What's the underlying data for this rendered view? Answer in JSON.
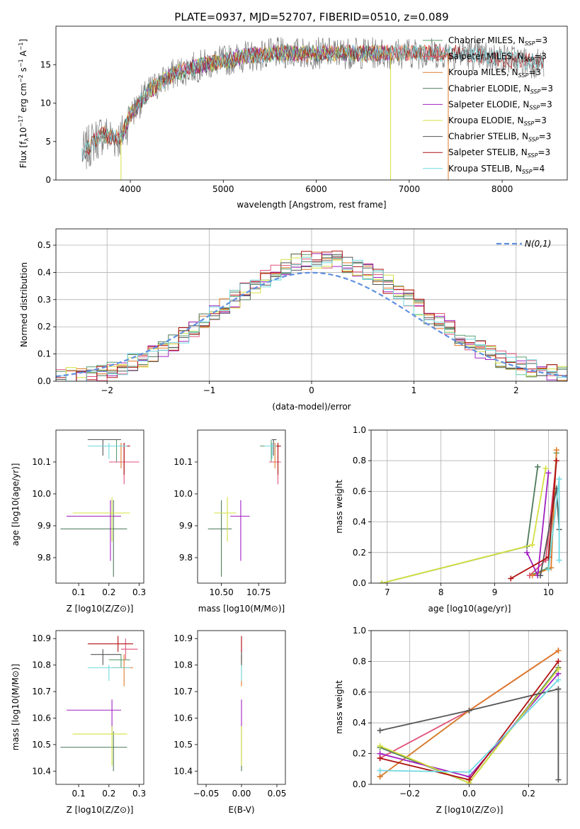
{
  "colors": {
    "Chabrier MILES": "#5a9e6f",
    "Salpeter MILES": "#e0527a",
    "Kroupa MILES": "#e07b2a",
    "Chabrier ELODIE": "#4d7a5a",
    "Salpeter ELODIE": "#a020c0",
    "Kroupa ELODIE": "#d4e040",
    "Chabrier STELIB": "#555555",
    "Salpeter STELIB": "#b01010",
    "Kroupa STELIB": "#70d8e0",
    "normal": "#6090e0"
  },
  "chart_data": [
    {
      "id": "spectrum",
      "type": "line",
      "title": "PLATE=0937, MJD=52707, FIBERID=0510, z=0.089",
      "xlabel": "wavelength [Angstrom, rest frame]",
      "ylabel": "Flux [f_λ 10^-17 erg cm^-2 s^-1 A^-1]",
      "xlim": [
        3200,
        8700
      ],
      "ylim": [
        0,
        20
      ],
      "xticks": [
        4000,
        5000,
        6000,
        7000,
        8000
      ],
      "yticks": [
        0,
        5,
        10,
        15
      ],
      "legend_position": "top-right",
      "legend": [
        {
          "base": "Chabrier MILES, N",
          "sub": "SSP",
          "tail": "=3"
        },
        {
          "base": "Salpeter MILES, N",
          "sub": "SSP",
          "tail": "=3"
        },
        {
          "base": "Kroupa MILES, N",
          "sub": "SSP",
          "tail": "=3"
        },
        {
          "base": "Chabrier ELODIE, N",
          "sub": "SSP",
          "tail": "=3"
        },
        {
          "base": "Salpeter ELODIE, N",
          "sub": "SSP",
          "tail": "=3"
        },
        {
          "base": "Kroupa ELODIE, N",
          "sub": "SSP",
          "tail": "=3"
        },
        {
          "base": "Chabrier STELIB, N",
          "sub": "SSP",
          "tail": "=3"
        },
        {
          "base": "Salpeter STELIB, N",
          "sub": "SSP",
          "tail": "=3"
        },
        {
          "base": "Kroupa STELIB, N",
          "sub": "SSP",
          "tail": "=4"
        }
      ],
      "continuum": {
        "x": [
          3500,
          3600,
          3700,
          3800,
          3900,
          4000,
          4100,
          4200,
          4300,
          4500,
          4800,
          5200,
          5600,
          6000,
          6500,
          7000,
          7500,
          8000,
          8400
        ],
        "y": [
          3.5,
          5.0,
          6.0,
          5.5,
          5.5,
          8.5,
          10.0,
          11.5,
          12.5,
          14.0,
          15.0,
          16.0,
          16.5,
          16.5,
          16.5,
          16.5,
          16.5,
          15.8,
          15.2
        ]
      },
      "range_by_series": {
        "MILES": [
          3540,
          7400
        ],
        "ELODIE": [
          3900,
          6800
        ],
        "STELIB": [
          3200,
          9300
        ]
      }
    },
    {
      "id": "residuals",
      "type": "histogram",
      "xlabel": "(data-model)/error",
      "ylabel": "Normed distribution",
      "xlim": [
        -2.5,
        2.5
      ],
      "ylim": [
        0,
        0.56
      ],
      "xticks": [
        -2,
        -1,
        0,
        1,
        2
      ],
      "yticks": [
        0.0,
        0.1,
        0.2,
        0.3,
        0.4,
        0.5
      ],
      "grid": true,
      "bin_width": 0.1,
      "legend_position": "top-right",
      "legend_label": "N(0,1)"
    },
    {
      "id": "age-vs-Z",
      "type": "errorbar",
      "xlabel": "Z [log10(Z/Z⊙)]",
      "ylabel": "age  [log10(age/yr)]",
      "xlim": [
        0.025,
        0.315
      ],
      "ylim": [
        9.72,
        10.2
      ],
      "xticks": [
        0.1,
        0.2,
        0.3
      ],
      "yticks": [
        9.8,
        9.9,
        10.0,
        10.1
      ],
      "points": [
        {
          "series": "Chabrier MILES",
          "x": 0.225,
          "y": 10.15,
          "xerr": [
            0.13,
            0.25
          ],
          "yerr": [
            10.1,
            10.17
          ]
        },
        {
          "series": "Salpeter MILES",
          "x": 0.25,
          "y": 10.1,
          "xerr": [
            0.2,
            0.3
          ],
          "yerr": [
            10.03,
            10.16
          ]
        },
        {
          "series": "Kroupa MILES",
          "x": 0.24,
          "y": 10.15,
          "xerr": [
            0.2,
            0.265
          ],
          "yerr": [
            10.08,
            10.16
          ]
        },
        {
          "series": "Chabrier ELODIE",
          "x": 0.215,
          "y": 9.89,
          "xerr": [
            0.04,
            0.26
          ],
          "yerr": [
            9.74,
            9.98
          ]
        },
        {
          "series": "Salpeter ELODIE",
          "x": 0.205,
          "y": 9.93,
          "xerr": [
            0.06,
            0.24
          ],
          "yerr": [
            9.79,
            9.98
          ]
        },
        {
          "series": "Kroupa ELODIE",
          "x": 0.21,
          "y": 9.94,
          "xerr": [
            0.08,
            0.27
          ],
          "yerr": [
            9.85,
            9.99
          ]
        },
        {
          "series": "Chabrier STELIB",
          "x": 0.18,
          "y": 10.17,
          "xerr": [
            0.13,
            0.24
          ],
          "yerr": [
            10.12,
            10.17
          ]
        },
        {
          "series": "Salpeter STELIB",
          "x": 0.25,
          "y": 10.15,
          "xerr": [
            0.2,
            0.27
          ],
          "yerr": [
            10.06,
            10.16
          ]
        },
        {
          "series": "Kroupa STELIB",
          "x": 0.2,
          "y": 10.15,
          "xerr": [
            0.13,
            0.26
          ],
          "yerr": [
            10.11,
            10.16
          ]
        }
      ]
    },
    {
      "id": "age-vs-mass",
      "type": "errorbar",
      "xlabel": "mass [log10(M/M⊙)]",
      "ylabel": "",
      "xlim": [
        10.34,
        10.93
      ],
      "ylim": [
        9.72,
        10.2
      ],
      "xticks": [
        10.5,
        10.75
      ],
      "yticks": [
        9.8,
        9.9,
        10.0,
        10.1
      ],
      "points": [
        {
          "series": "Chabrier MILES",
          "x": 10.835,
          "y": 10.15,
          "xerr": [
            10.76,
            10.88
          ],
          "yerr": [
            10.1,
            10.17
          ]
        },
        {
          "series": "Salpeter MILES",
          "x": 10.88,
          "y": 10.1,
          "xerr": [
            10.82,
            10.9
          ],
          "yerr": [
            10.03,
            10.16
          ]
        },
        {
          "series": "Kroupa MILES",
          "x": 10.86,
          "y": 10.15,
          "xerr": [
            10.8,
            10.88
          ],
          "yerr": [
            10.08,
            10.16
          ]
        },
        {
          "series": "Chabrier ELODIE",
          "x": 10.5,
          "y": 9.89,
          "xerr": [
            10.41,
            10.57
          ],
          "yerr": [
            9.74,
            9.98
          ]
        },
        {
          "series": "Salpeter ELODIE",
          "x": 10.63,
          "y": 9.93,
          "xerr": [
            10.56,
            10.69
          ],
          "yerr": [
            9.79,
            9.98
          ]
        },
        {
          "series": "Kroupa ELODIE",
          "x": 10.54,
          "y": 9.94,
          "xerr": [
            10.45,
            10.6
          ],
          "yerr": [
            9.85,
            9.99
          ]
        },
        {
          "series": "Chabrier STELIB",
          "x": 10.85,
          "y": 10.17,
          "xerr": [
            10.84,
            10.87
          ],
          "yerr": [
            10.12,
            10.17
          ]
        },
        {
          "series": "Salpeter STELIB",
          "x": 10.88,
          "y": 10.15,
          "xerr": [
            10.86,
            10.9
          ],
          "yerr": [
            10.06,
            10.16
          ]
        },
        {
          "series": "Kroupa STELIB",
          "x": 10.84,
          "y": 10.15,
          "xerr": [
            10.79,
            10.87
          ],
          "yerr": [
            10.11,
            10.16
          ]
        }
      ]
    },
    {
      "id": "weight-vs-age",
      "type": "line",
      "xlabel": "age  [log10(age/yr)]",
      "ylabel": "mass weight",
      "xlim": [
        6.7,
        10.35
      ],
      "ylim": [
        0,
        1
      ],
      "xticks": [
        7,
        8,
        9,
        10
      ],
      "yticks": [
        0.0,
        0.2,
        0.4,
        0.6,
        0.8,
        1.0
      ],
      "grid": true,
      "series": [
        {
          "name": "Chabrier MILES",
          "x": [
            9.65,
            10.0,
            10.15
          ],
          "y": [
            0.05,
            0.1,
            0.85
          ]
        },
        {
          "name": "Salpeter MILES",
          "x": [
            9.65,
            9.95,
            10.15
          ],
          "y": [
            0.05,
            0.15,
            0.8
          ]
        },
        {
          "name": "Kroupa MILES",
          "x": [
            9.7,
            10.05,
            10.15
          ],
          "y": [
            0.05,
            0.1,
            0.87
          ]
        },
        {
          "name": "Chabrier ELODIE",
          "x": [
            6.9,
            9.6,
            9.8
          ],
          "y": [
            0.0,
            0.24,
            0.76
          ]
        },
        {
          "name": "Salpeter ELODIE",
          "x": [
            9.6,
            9.8,
            10.0
          ],
          "y": [
            0.2,
            0.05,
            0.72
          ]
        },
        {
          "name": "Kroupa ELODIE",
          "x": [
            6.9,
            9.7,
            9.95
          ],
          "y": [
            0.0,
            0.25,
            0.75
          ]
        },
        {
          "name": "Chabrier STELIB",
          "x": [
            9.85,
            10.15,
            10.2
          ],
          "y": [
            0.05,
            0.62,
            0.35
          ]
        },
        {
          "name": "Salpeter STELIB",
          "x": [
            9.3,
            10.0,
            10.15
          ],
          "y": [
            0.03,
            0.17,
            0.8
          ]
        },
        {
          "name": "Kroupa STELIB",
          "x": [
            10.0,
            10.2,
            10.2
          ],
          "y": [
            0.09,
            0.68,
            0.15
          ]
        }
      ]
    },
    {
      "id": "mass-vs-Z",
      "type": "errorbar",
      "xlabel": "Z [log10(Z/Z⊙)]",
      "ylabel": "mass [log10(M/M⊙)]",
      "xlim": [
        0.025,
        0.315
      ],
      "ylim": [
        10.35,
        10.93
      ],
      "xticks": [
        0.1,
        0.2,
        0.3
      ],
      "yticks": [
        10.4,
        10.5,
        10.6,
        10.7,
        10.8,
        10.9
      ],
      "points": [
        {
          "series": "Chabrier MILES",
          "x": 0.24,
          "y": 10.82,
          "xerr": [
            0.2,
            0.27
          ],
          "yerr": [
            10.79,
            10.84
          ]
        },
        {
          "series": "Salpeter MILES",
          "x": 0.255,
          "y": 10.86,
          "xerr": [
            0.24,
            0.295
          ],
          "yerr": [
            10.82,
            10.9
          ]
        },
        {
          "series": "Kroupa MILES",
          "x": 0.25,
          "y": 10.79,
          "xerr": [
            0.21,
            0.28
          ],
          "yerr": [
            10.72,
            10.84
          ]
        },
        {
          "series": "Chabrier ELODIE",
          "x": 0.215,
          "y": 10.49,
          "xerr": [
            0.04,
            0.26
          ],
          "yerr": [
            10.4,
            10.55
          ]
        },
        {
          "series": "Salpeter ELODIE",
          "x": 0.21,
          "y": 10.63,
          "xerr": [
            0.06,
            0.24
          ],
          "yerr": [
            10.55,
            10.67
          ]
        },
        {
          "series": "Kroupa ELODIE",
          "x": 0.21,
          "y": 10.54,
          "xerr": [
            0.08,
            0.26
          ],
          "yerr": [
            10.42,
            10.57
          ]
        },
        {
          "series": "Chabrier STELIB",
          "x": 0.18,
          "y": 10.84,
          "xerr": [
            0.14,
            0.24
          ],
          "yerr": [
            10.8,
            10.86
          ]
        },
        {
          "series": "Salpeter STELIB",
          "x": 0.23,
          "y": 10.88,
          "xerr": [
            0.13,
            0.28
          ],
          "yerr": [
            10.85,
            10.91
          ]
        },
        {
          "series": "Kroupa STELIB",
          "x": 0.2,
          "y": 10.79,
          "xerr": [
            0.13,
            0.27
          ],
          "yerr": [
            10.74,
            10.8
          ]
        }
      ]
    },
    {
      "id": "mass-vs-EBV",
      "type": "errorbar",
      "xlabel": "E(B-V)",
      "ylabel": "",
      "xlim": [
        -0.062,
        0.062
      ],
      "ylim": [
        10.35,
        10.93
      ],
      "xticks": [
        -0.05,
        0.0,
        0.05
      ],
      "yticks": [
        10.4,
        10.5,
        10.6,
        10.7,
        10.8,
        10.9
      ],
      "points": [
        {
          "series": "Chabrier MILES",
          "x": 0,
          "y": 10.82,
          "xerr": [
            0,
            0
          ],
          "yerr": [
            10.79,
            10.84
          ]
        },
        {
          "series": "Salpeter MILES",
          "x": 0,
          "y": 10.86,
          "xerr": [
            0,
            0
          ],
          "yerr": [
            10.82,
            10.9
          ]
        },
        {
          "series": "Kroupa MILES",
          "x": 0,
          "y": 10.79,
          "xerr": [
            0,
            0
          ],
          "yerr": [
            10.72,
            10.84
          ]
        },
        {
          "series": "Chabrier ELODIE",
          "x": 0,
          "y": 10.49,
          "xerr": [
            0,
            0
          ],
          "yerr": [
            10.4,
            10.55
          ]
        },
        {
          "series": "Salpeter ELODIE",
          "x": 0,
          "y": 10.63,
          "xerr": [
            0,
            0
          ],
          "yerr": [
            10.55,
            10.67
          ]
        },
        {
          "series": "Kroupa ELODIE",
          "x": 0,
          "y": 10.54,
          "xerr": [
            0,
            0
          ],
          "yerr": [
            10.42,
            10.57
          ]
        },
        {
          "series": "Chabrier STELIB",
          "x": 0,
          "y": 10.84,
          "xerr": [
            0,
            0
          ],
          "yerr": [
            10.8,
            10.86
          ]
        },
        {
          "series": "Salpeter STELIB",
          "x": 0,
          "y": 10.88,
          "xerr": [
            0,
            0
          ],
          "yerr": [
            10.85,
            10.91
          ]
        },
        {
          "series": "Kroupa STELIB",
          "x": 0,
          "y": 10.79,
          "xerr": [
            0,
            0
          ],
          "yerr": [
            10.74,
            10.8
          ]
        }
      ]
    },
    {
      "id": "weight-vs-Z",
      "type": "line",
      "xlabel": "Z [log10(Z/Z⊙)]",
      "ylabel": "mass weight",
      "xlim": [
        -0.33,
        0.33
      ],
      "ylim": [
        0,
        1
      ],
      "xticks": [
        -0.2,
        0.0,
        0.2
      ],
      "yticks": [
        0.0,
        0.2,
        0.4,
        0.6,
        0.8,
        1.0
      ],
      "grid": true,
      "series": [
        {
          "name": "Chabrier MILES",
          "x": [
            -0.3,
            0.0,
            0.3
          ],
          "y": [
            0.05,
            0.48,
            0.87
          ]
        },
        {
          "name": "Salpeter MILES",
          "x": [
            -0.3,
            0.0,
            0.3
          ],
          "y": [
            0.17,
            0.48,
            0.87
          ]
        },
        {
          "name": "Kroupa MILES",
          "x": [
            -0.3,
            0.0,
            0.3
          ],
          "y": [
            0.05,
            0.48,
            0.87
          ]
        },
        {
          "name": "Chabrier ELODIE",
          "x": [
            -0.3,
            0.0,
            0.3
          ],
          "y": [
            0.24,
            0.01,
            0.76
          ]
        },
        {
          "name": "Salpeter ELODIE",
          "x": [
            -0.3,
            0.0,
            0.3
          ],
          "y": [
            0.2,
            0.05,
            0.72
          ]
        },
        {
          "name": "Kroupa ELODIE",
          "x": [
            -0.3,
            0.0,
            0.3
          ],
          "y": [
            0.25,
            0.01,
            0.75
          ]
        },
        {
          "name": "Chabrier STELIB",
          "x": [
            -0.3,
            0.0,
            0.3,
            0.3,
            0.3
          ],
          "y": [
            0.35,
            0.48,
            0.62,
            0.62,
            0.03
          ]
        },
        {
          "name": "Salpeter STELIB",
          "x": [
            -0.3,
            0.0,
            0.3
          ],
          "y": [
            0.17,
            0.03,
            0.8
          ]
        },
        {
          "name": "Kroupa STELIB",
          "x": [
            -0.3,
            0.0,
            0.3
          ],
          "y": [
            0.09,
            0.08,
            0.68
          ]
        }
      ]
    }
  ]
}
